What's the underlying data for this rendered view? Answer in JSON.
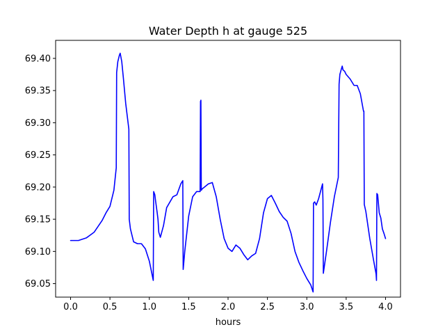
{
  "chart_data": {
    "type": "line",
    "title": "Water Depth h at gauge 525",
    "xlabel": "hours",
    "ylabel": "",
    "xlim": [
      -0.19,
      4.19
    ],
    "ylim": [
      69.029,
      69.428
    ],
    "xticks": [
      0.0,
      0.5,
      1.0,
      1.5,
      2.0,
      2.5,
      3.0,
      3.5,
      4.0
    ],
    "xtick_labels": [
      "0.0",
      "0.5",
      "1.0",
      "1.5",
      "2.0",
      "2.5",
      "3.0",
      "3.5",
      "4.0"
    ],
    "yticks": [
      69.05,
      69.1,
      69.15,
      69.2,
      69.25,
      69.3,
      69.35,
      69.4
    ],
    "ytick_labels": [
      "69.05",
      "69.10",
      "69.15",
      "69.20",
      "69.25",
      "69.30",
      "69.35",
      "69.40"
    ],
    "grid": false,
    "series": [
      {
        "color": "#0000ff",
        "x": [
          0.0,
          0.1,
          0.2,
          0.3,
          0.4,
          0.45,
          0.5,
          0.55,
          0.58,
          0.585,
          0.6,
          0.62,
          0.63,
          0.65,
          0.67,
          0.7,
          0.74,
          0.745,
          0.76,
          0.8,
          0.85,
          0.9,
          0.95,
          1.0,
          1.05,
          1.055,
          1.07,
          1.08,
          1.1,
          1.11,
          1.12,
          1.14,
          1.18,
          1.22,
          1.3,
          1.35,
          1.4,
          1.425,
          1.43,
          1.45,
          1.5,
          1.55,
          1.6,
          1.645,
          1.65,
          1.655,
          1.66,
          1.67,
          1.7,
          1.75,
          1.8,
          1.85,
          1.9,
          1.95,
          2.0,
          2.05,
          2.1,
          2.15,
          2.2,
          2.25,
          2.3,
          2.35,
          2.4,
          2.45,
          2.5,
          2.55,
          2.6,
          2.65,
          2.7,
          2.75,
          2.8,
          2.85,
          2.9,
          2.95,
          3.0,
          3.05,
          3.08,
          3.085,
          3.1,
          3.12,
          3.15,
          3.2,
          3.205,
          3.21,
          3.25,
          3.3,
          3.35,
          3.4,
          3.41,
          3.42,
          3.44,
          3.45,
          3.46,
          3.48,
          3.5,
          3.55,
          3.6,
          3.64,
          3.68,
          3.72,
          3.725,
          3.73,
          3.75,
          3.8,
          3.85,
          3.88,
          3.885,
          3.89,
          3.9,
          3.92,
          3.94,
          3.96,
          3.98,
          4.0
        ],
        "y": [
          69.117,
          69.117,
          69.121,
          69.13,
          69.148,
          69.16,
          69.17,
          69.195,
          69.23,
          69.378,
          69.395,
          69.405,
          69.408,
          69.395,
          69.37,
          69.33,
          69.29,
          69.15,
          69.135,
          69.115,
          69.112,
          69.112,
          69.104,
          69.085,
          69.055,
          69.193,
          69.188,
          69.178,
          69.16,
          69.15,
          69.13,
          69.122,
          69.14,
          69.168,
          69.185,
          69.188,
          69.205,
          69.21,
          69.072,
          69.1,
          69.155,
          69.185,
          69.193,
          69.193,
          69.333,
          69.335,
          69.195,
          69.197,
          69.2,
          69.205,
          69.207,
          69.185,
          69.15,
          69.12,
          69.105,
          69.1,
          69.11,
          69.105,
          69.095,
          69.087,
          69.093,
          69.097,
          69.12,
          69.16,
          69.182,
          69.187,
          69.175,
          69.162,
          69.153,
          69.147,
          69.128,
          69.1,
          69.083,
          69.07,
          69.058,
          69.048,
          69.037,
          69.175,
          69.177,
          69.172,
          69.182,
          69.205,
          69.18,
          69.066,
          69.1,
          69.145,
          69.185,
          69.215,
          69.36,
          69.375,
          69.384,
          69.388,
          69.382,
          69.38,
          69.375,
          69.368,
          69.358,
          69.358,
          69.345,
          69.318,
          69.318,
          69.173,
          69.162,
          69.12,
          69.085,
          69.065,
          69.055,
          69.19,
          69.188,
          69.16,
          69.152,
          69.135,
          69.128,
          69.12
        ]
      }
    ]
  }
}
